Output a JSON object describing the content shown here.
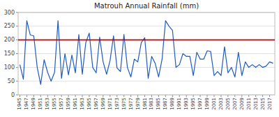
{
  "chart_data": {
    "type": "line",
    "title": "Matrouh Annual Rainfall (mm)",
    "x": [
      1945,
      1946,
      1947,
      1948,
      1949,
      1950,
      1951,
      1952,
      1953,
      1954,
      1955,
      1956,
      1957,
      1958,
      1959,
      1960,
      1961,
      1962,
      1963,
      1964,
      1965,
      1966,
      1967,
      1968,
      1969,
      1970,
      1971,
      1972,
      1973,
      1974,
      1975,
      1976,
      1977,
      1978,
      1979,
      1980,
      1981,
      1982,
      1983,
      1984,
      1985,
      1986,
      1987,
      1988,
      1989,
      1990,
      1991,
      1992,
      1993,
      1994,
      1995,
      1996,
      1997,
      1998,
      1999,
      2000,
      2001,
      2002,
      2003,
      2004,
      2005,
      2006,
      2007,
      2008,
      2009,
      2010,
      2011,
      2012,
      2013,
      2014,
      2015,
      2016,
      2017,
      2018
    ],
    "values": [
      110,
      57,
      270,
      218,
      215,
      100,
      38,
      128,
      82,
      50,
      82,
      270,
      60,
      150,
      73,
      145,
      80,
      220,
      75,
      190,
      225,
      100,
      80,
      210,
      120,
      75,
      125,
      215,
      98,
      85,
      220,
      100,
      65,
      130,
      120,
      190,
      208,
      60,
      140,
      115,
      65,
      130,
      270,
      250,
      235,
      100,
      110,
      150,
      140,
      140,
      70,
      155,
      130,
      130,
      160,
      158,
      70,
      85,
      70,
      175,
      80,
      100,
      65,
      155,
      70,
      120,
      100,
      110,
      100,
      110,
      100,
      105,
      120,
      115
    ],
    "color": "#1f5bbf",
    "mean_line": 200,
    "mean_color": "#cc0000",
    "xlim": [
      1944.5,
      2018.5
    ],
    "xticks": [
      1945,
      1947,
      1949,
      1951,
      1953,
      1955,
      1957,
      1959,
      1961,
      1963,
      1965,
      1967,
      1969,
      1971,
      1973,
      1975,
      1977,
      1979,
      1981,
      1983,
      1985,
      1987,
      1989,
      1991,
      1993,
      1995,
      1997,
      1999,
      2001,
      2003,
      2005,
      2007,
      2009,
      2011,
      2013,
      2015,
      2017
    ],
    "ylim": [
      0,
      300
    ],
    "yticks": [
      0,
      50,
      100,
      150,
      200,
      250,
      300
    ],
    "grid": true
  }
}
